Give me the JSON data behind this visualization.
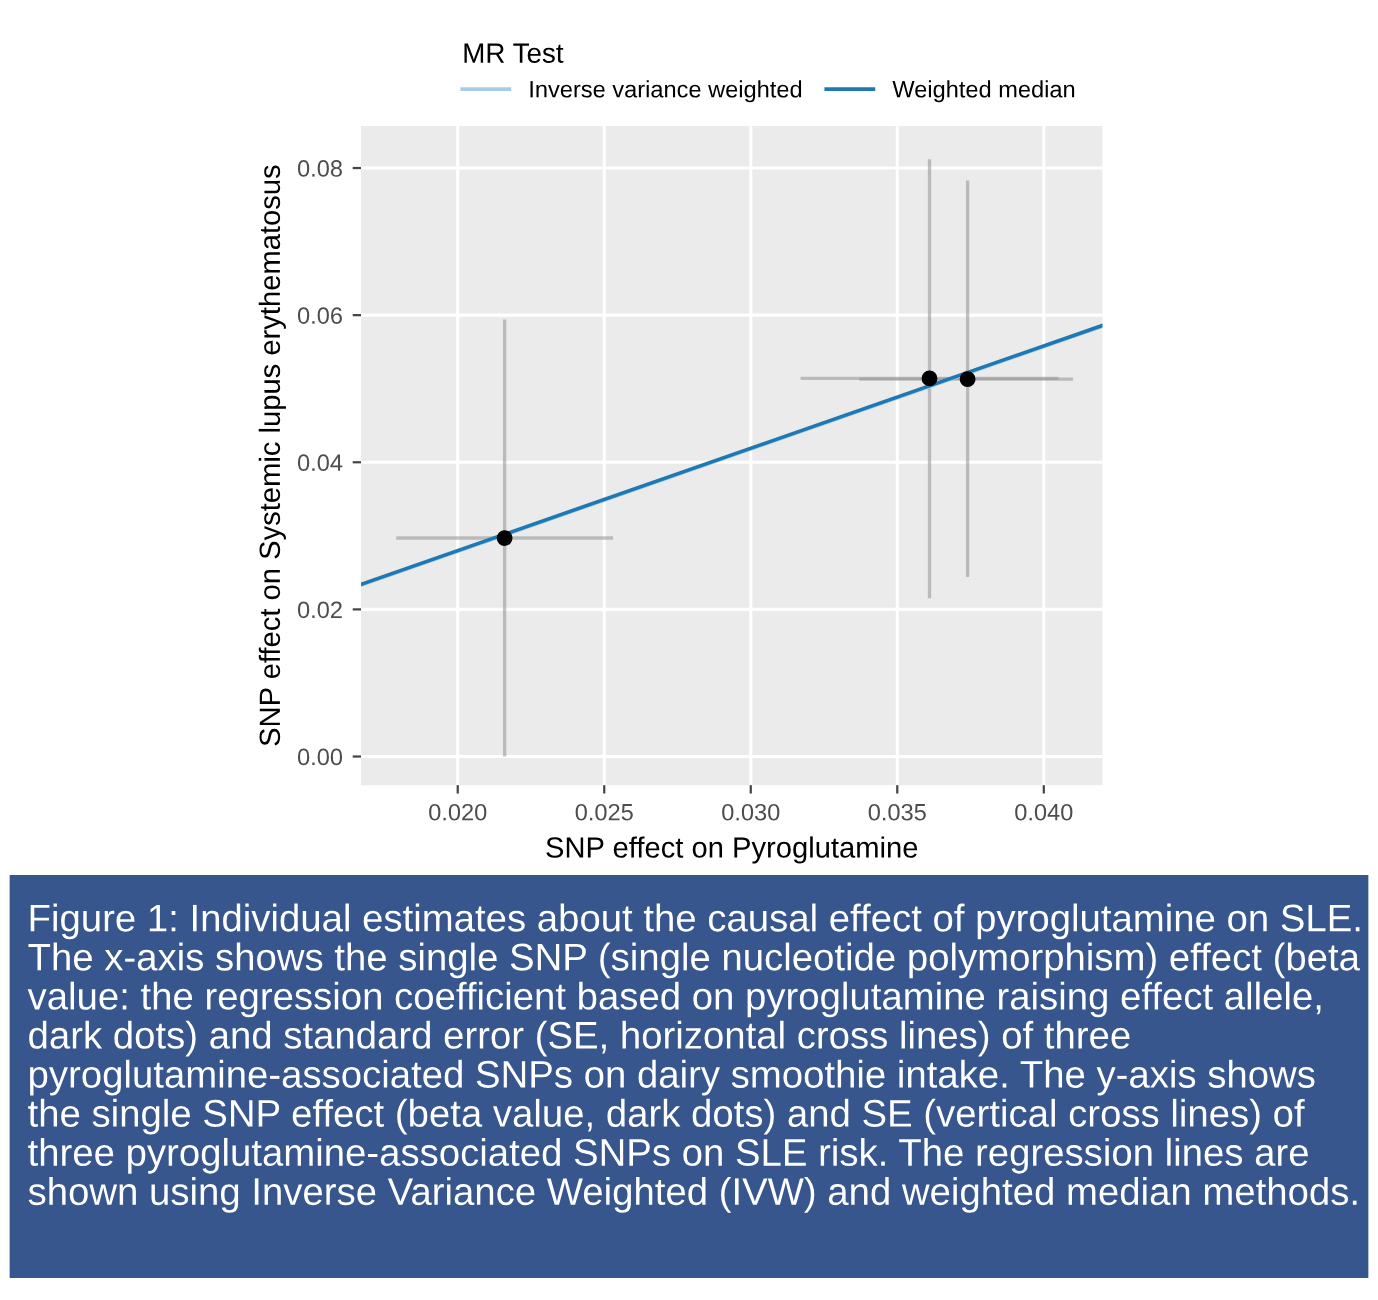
{
  "chart_data": {
    "type": "scatter",
    "xlabel": "SNP effect on Pyroglutamine",
    "ylabel": "SNP effect on Systemic lupus erythematosus",
    "legend_title": "MR Test",
    "xlim": [
      0.0167,
      0.042
    ],
    "ylim": [
      -0.0039,
      0.0857
    ],
    "xticks": [
      {
        "value": 0.02,
        "label": "0.020"
      },
      {
        "value": 0.025,
        "label": "0.025"
      },
      {
        "value": 0.03,
        "label": "0.030"
      },
      {
        "value": 0.035,
        "label": "0.035"
      },
      {
        "value": 0.04,
        "label": "0.040"
      }
    ],
    "yticks": [
      {
        "value": 0,
        "label": "0.00"
      },
      {
        "value": 0.02,
        "label": "0.02"
      },
      {
        "value": 0.04,
        "label": "0.04"
      },
      {
        "value": 0.06,
        "label": "0.06"
      },
      {
        "value": 0.08,
        "label": "0.08"
      }
    ],
    "grid": true,
    "legend": "top",
    "series": [
      {
        "marker": "circle",
        "color": "#000000",
        "x": [
          0.0216,
          0.0361,
          0.0374
        ],
        "values": [
          0.0297,
          0.0514,
          0.0513
        ],
        "errors": [
          [
            0.0,
            0.0594
          ],
          [
            0.0215,
            0.0812
          ],
          [
            0.0244,
            0.0783
          ]
        ],
        "xerrors": [
          [
            0.0179,
            0.0253
          ],
          [
            0.0317,
            0.0405
          ],
          [
            0.0337,
            0.041
          ]
        ]
      },
      {
        "type": "line",
        "name": "Inverse variance weighted",
        "color": "#a6cee3",
        "x": [
          0.0167,
          0.042
        ],
        "values": [
          0.0233,
          0.0585
        ]
      },
      {
        "type": "line",
        "name": "Weighted median",
        "color": "#1f78b4",
        "x": [
          0.0167,
          0.042
        ],
        "values": [
          0.0234,
          0.0586
        ]
      }
    ],
    "annotations": [
      "Figure 1: Individual estimates about the causal effect of pyroglutamine on SLE. The x-axis shows the single SNP (single nucleotide polymorphism) effect (beta value: the regression coefficient based on pyroglutamine raising effect allele, dark dots) and standard error (SE, horizontal cross lines) of three pyroglutamine-associated SNPs on dairy smoothie intake. The y-axis shows the single SNP effect (beta value, dark dots) and SE (vertical cross lines) of three pyroglutamine-associated SNPs on SLE risk. The regression lines are shown using Inverse Variance Weighted (IVW) and weighted median methods."
    ]
  }
}
